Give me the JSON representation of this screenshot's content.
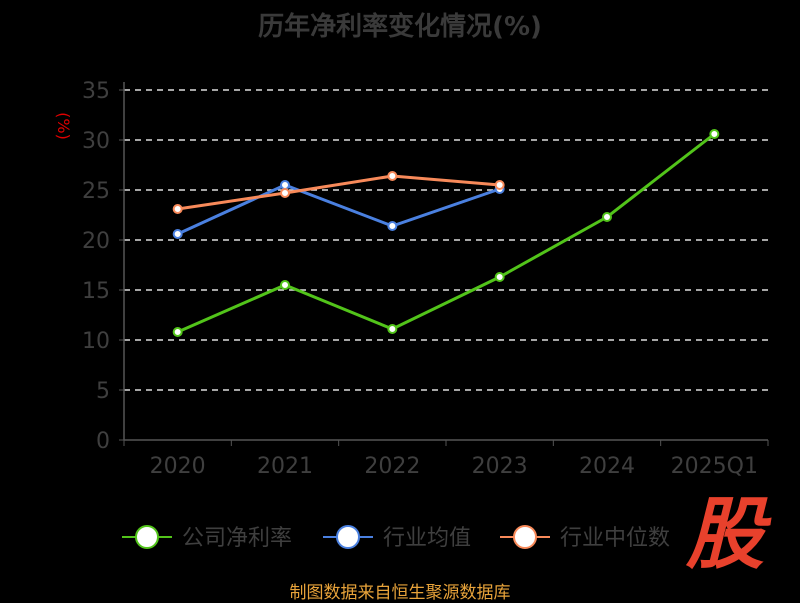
{
  "chart_data": {
    "type": "line",
    "title": "历年净利率变化情况(%)",
    "ylabel": "(%)",
    "xlabel": "",
    "categories": [
      "2020",
      "2021",
      "2022",
      "2023",
      "2024",
      "2025Q1"
    ],
    "ylim": [
      0,
      35
    ],
    "yticks": [
      "0",
      "5",
      "10",
      "15",
      "20",
      "25",
      "30",
      "35"
    ],
    "grid": true,
    "legend_position": "bottom",
    "series": [
      {
        "name": "公司净利率",
        "color": "#52c41a",
        "values": [
          10.8,
          15.5,
          11.1,
          16.3,
          22.3,
          30.6
        ]
      },
      {
        "name": "行业均值",
        "color": "#4a80e0",
        "values": [
          20.6,
          25.5,
          21.4,
          25.1,
          null,
          null
        ]
      },
      {
        "name": "行业中位数",
        "color": "#f88a5a",
        "values": [
          23.1,
          24.7,
          26.4,
          25.5,
          null,
          null
        ]
      }
    ]
  },
  "footer": "制图数据来自恒生聚源数据库",
  "logo_text": "股"
}
